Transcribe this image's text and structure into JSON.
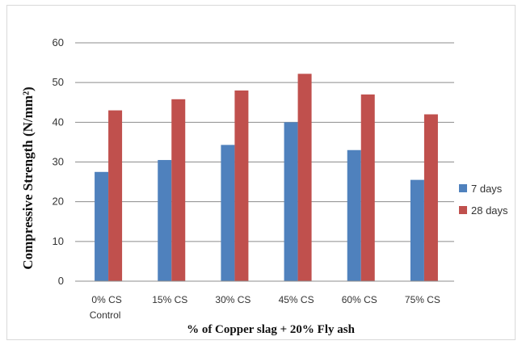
{
  "chart_data": {
    "type": "bar",
    "categories": [
      "0% CS",
      "15% CS",
      "30% CS",
      "45% CS",
      "60% CS",
      "75% CS"
    ],
    "category_sublabels": [
      "Control",
      "",
      "",
      "",
      "",
      ""
    ],
    "series": [
      {
        "name": "7 days",
        "values": [
          27.5,
          30.5,
          34.3,
          40,
          33,
          25.5
        ],
        "color": "#4f81bd"
      },
      {
        "name": "28 days",
        "values": [
          43,
          45.8,
          48,
          52.2,
          47,
          42
        ],
        "color": "#c0504d"
      }
    ],
    "xlabel": "% of Copper slag + 20% Fly ash",
    "ylabel": "Compressive Strength (N/mm²)",
    "ylim": [
      0,
      60
    ],
    "yticks": [
      0,
      10,
      20,
      30,
      40,
      50,
      60
    ],
    "grid": true,
    "legend_position": "right"
  }
}
